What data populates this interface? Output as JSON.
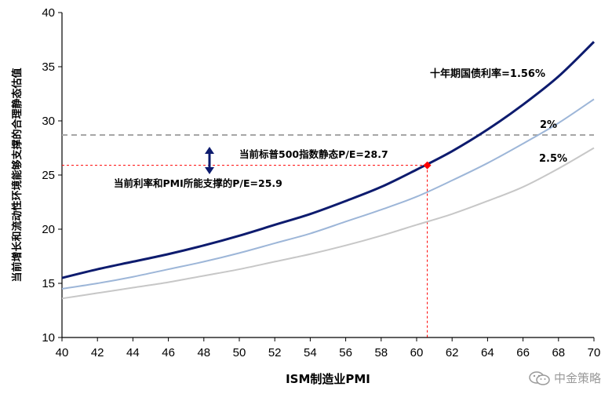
{
  "chart_data": {
    "type": "line",
    "xlabel": "ISM制造业PMI",
    "ylabel": "当前增长和流动性环境能够支撑的合理静态估值",
    "xlim": [
      40,
      70
    ],
    "ylim": [
      10,
      40
    ],
    "xticks": [
      40,
      42,
      44,
      46,
      48,
      50,
      52,
      54,
      56,
      58,
      60,
      62,
      64,
      66,
      68,
      70
    ],
    "yticks": [
      10,
      15,
      20,
      25,
      30,
      35,
      40
    ],
    "grid": false,
    "x": [
      40,
      42,
      44,
      46,
      48,
      50,
      52,
      54,
      56,
      58,
      60,
      62,
      64,
      66,
      68,
      70
    ],
    "series": [
      {
        "name": "十年期国债利率=1.56%",
        "color": "#0d1b6e",
        "values": [
          15.5,
          16.3,
          17.0,
          17.7,
          18.5,
          19.4,
          20.4,
          21.4,
          22.6,
          23.9,
          25.5,
          27.2,
          29.2,
          31.5,
          34.1,
          37.3
        ]
      },
      {
        "name": "2%",
        "color": "#9db6d8",
        "values": [
          14.5,
          15.0,
          15.6,
          16.3,
          17.0,
          17.8,
          18.7,
          19.6,
          20.7,
          21.8,
          23.0,
          24.5,
          26.1,
          27.9,
          29.8,
          32.0
        ]
      },
      {
        "name": "2.5%",
        "color": "#c7c7c7",
        "values": [
          13.6,
          14.1,
          14.6,
          15.1,
          15.7,
          16.3,
          17.0,
          17.7,
          18.5,
          19.4,
          20.4,
          21.4,
          22.6,
          23.9,
          25.6,
          27.5
        ]
      }
    ],
    "reference_lines": [
      {
        "type": "horizontal",
        "y": 28.7,
        "style": "dashed",
        "color": "#a6a6a6"
      },
      {
        "type": "horizontal",
        "y": 25.9,
        "x_to": 60.6,
        "style": "dashed",
        "color": "#ff0000"
      },
      {
        "type": "vertical",
        "x": 60.6,
        "y_to": 25.9,
        "style": "dashed",
        "color": "#ff0000"
      }
    ],
    "highlight_point": {
      "x": 60.6,
      "y": 25.9,
      "color": "#ff0000"
    },
    "annotations": {
      "current_pe": "当前标普500指数静态P/E=28.7",
      "supported_pe": "当前利率和PMI所能支撑的P/E=25.9"
    }
  },
  "watermark": {
    "text": "中金策略",
    "icon": "wechat-icon"
  }
}
